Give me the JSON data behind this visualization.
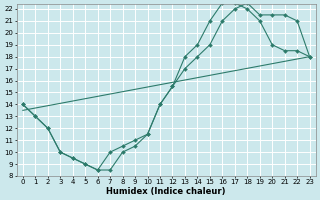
{
  "xlabel": "Humidex (Indice chaleur)",
  "bg_color": "#cce8ec",
  "grid_color": "#ffffff",
  "line_color": "#2d7b6b",
  "xlim": [
    -0.5,
    23.5
  ],
  "ylim": [
    8,
    22.4
  ],
  "xticks": [
    0,
    1,
    2,
    3,
    4,
    5,
    6,
    7,
    8,
    9,
    10,
    11,
    12,
    13,
    14,
    15,
    16,
    17,
    18,
    19,
    20,
    21,
    22,
    23
  ],
  "yticks": [
    8,
    9,
    10,
    11,
    12,
    13,
    14,
    15,
    16,
    17,
    18,
    19,
    20,
    21,
    22
  ],
  "series": [
    {
      "x": [
        0,
        1,
        2,
        3,
        4,
        5,
        6,
        7,
        8,
        9,
        10,
        11,
        12,
        13,
        14,
        15,
        16,
        17,
        18,
        19,
        20,
        21,
        22,
        23
      ],
      "y": [
        14,
        13,
        12,
        10,
        9.5,
        9,
        8.5,
        10,
        10.5,
        11,
        11.5,
        14,
        15.5,
        17,
        18,
        19,
        21,
        22,
        22.5,
        21.5,
        21.5,
        21.5,
        21,
        18
      ],
      "has_markers": true
    },
    {
      "x": [
        0,
        23
      ],
      "y": [
        13.5,
        18
      ],
      "has_markers": false
    },
    {
      "x": [
        0,
        1,
        2,
        3,
        4,
        5,
        6,
        7,
        8,
        9,
        10,
        11,
        12,
        13,
        14,
        15,
        16,
        17,
        18,
        19,
        20,
        21,
        22,
        23
      ],
      "y": [
        14,
        13,
        12,
        10,
        9.5,
        9,
        8.5,
        8.5,
        10,
        10.5,
        11.5,
        14,
        15.5,
        18,
        19,
        21,
        22.5,
        22.5,
        22,
        21,
        19,
        18.5,
        18.5,
        18
      ],
      "has_markers": true
    }
  ]
}
